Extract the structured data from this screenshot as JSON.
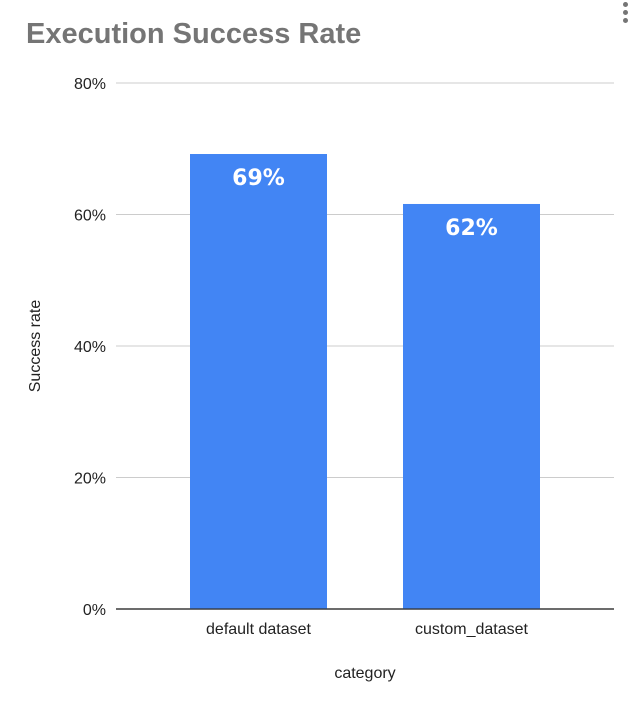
{
  "chart_data": {
    "type": "bar",
    "title": "Execution Success Rate",
    "xlabel": "category",
    "ylabel": "Success rate",
    "categories": [
      "default dataset",
      "custom_dataset"
    ],
    "values": [
      69.2,
      61.6
    ],
    "data_labels": [
      "69%",
      "62%"
    ],
    "ylim": [
      0,
      80
    ],
    "yticks": [
      0,
      20,
      40,
      60,
      80
    ],
    "ytick_labels": [
      "0%",
      "20%",
      "40%",
      "60%",
      "80%"
    ],
    "grid": true,
    "bar_color": "#4285f4",
    "legend": "none"
  }
}
